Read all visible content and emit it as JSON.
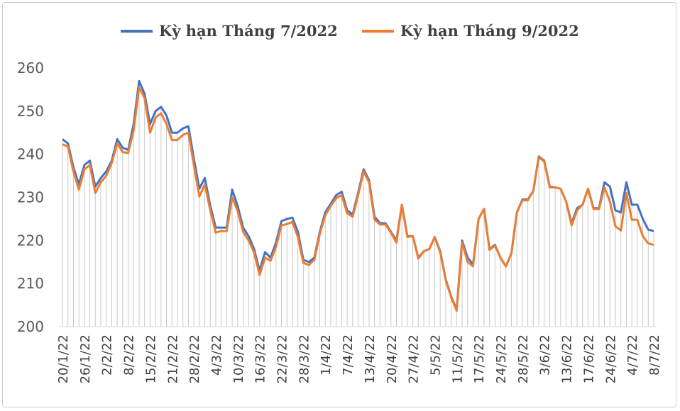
{
  "chart_data": {
    "type": "line",
    "title": "",
    "xlabel": "",
    "ylabel": "",
    "ylim": [
      200,
      260
    ],
    "yticks": [
      200,
      210,
      220,
      230,
      240,
      250,
      260
    ],
    "legend_position": "top-center",
    "grid": false,
    "drop_lines": true,
    "colors": {
      "series1": "#4472C4",
      "series2": "#ED7D31",
      "droplines": "#c8c8c8"
    },
    "x_tick_labels": [
      "20/1/22",
      "26/1/22",
      "2/2/22",
      "8/2/22",
      "15/2/22",
      "21/2/22",
      "28/2/22",
      "4/3/22",
      "10/3/22",
      "16/3/22",
      "22/3/22",
      "28/3/22",
      "1/4/22",
      "7/4/22",
      "13/4/22",
      "20/4/22",
      "27/4/22",
      "5/5/22",
      "11/5/22",
      "17/5/22",
      "24/5/22",
      "28/5/22",
      "3/6/22",
      "13/6/22",
      "17/6/22",
      "24/6/22",
      "4/7/22",
      "8/7/22"
    ],
    "x_tick_index": [
      0,
      4,
      8,
      12,
      16,
      20,
      24,
      28,
      32,
      36,
      40,
      44,
      48,
      52,
      56,
      60,
      64,
      68,
      72,
      76,
      80,
      84,
      88,
      92,
      96,
      100,
      104,
      108
    ],
    "point_count": 109,
    "series": [
      {
        "name": "Kỳ hạn Tháng 7/2022",
        "values": [
          243.5,
          242.5,
          237,
          233,
          237.5,
          238.5,
          232.5,
          234.5,
          236,
          238.5,
          243.5,
          241.5,
          241,
          247,
          257,
          254,
          247,
          250,
          251,
          249,
          245,
          245,
          246,
          246.5,
          239,
          232,
          234.5,
          228,
          223,
          223,
          223,
          231.8,
          228,
          223,
          221,
          218,
          213,
          217.3,
          216,
          219.5,
          224.5,
          225,
          225.3,
          222,
          215.5,
          215,
          216,
          222,
          226.5,
          228.5,
          230.5,
          231.3,
          227,
          226,
          231,
          236.5,
          234,
          225.5,
          224,
          224,
          222,
          220,
          228.3,
          221,
          221,
          216,
          217.5,
          218,
          220.8,
          217.5,
          211,
          207,
          204,
          220,
          216,
          214.5,
          225,
          227.3,
          218,
          219,
          216,
          214,
          217,
          226.5,
          229.5,
          229.5,
          231.5,
          239.5,
          238.5,
          232.5,
          232.3,
          232,
          229,
          224,
          227.5,
          228.3,
          232,
          227.5,
          227.5,
          233.5,
          232.5,
          227,
          226.5,
          233.5,
          228.3,
          228.3,
          225,
          222.5,
          222.2
        ],
        "values_color": "#4472C4"
      },
      {
        "name": "Kỳ hạn Tháng 9/2022",
        "values": [
          242.3,
          241.8,
          236,
          231.8,
          236.5,
          237.5,
          231,
          233.5,
          235,
          238,
          242.5,
          240.5,
          240.3,
          245.5,
          255.5,
          253,
          245,
          248.5,
          249.5,
          247,
          243.3,
          243.3,
          244.5,
          245,
          237.5,
          230.2,
          233,
          227,
          221.8,
          222.2,
          222.2,
          230,
          226.8,
          222,
          220,
          217.2,
          212,
          216,
          215.3,
          218.5,
          223.5,
          223.8,
          224.3,
          220.8,
          214.8,
          214.3,
          215.5,
          221.5,
          225.8,
          228,
          229.8,
          230.5,
          226.3,
          225.5,
          230.5,
          236,
          233.5,
          224.8,
          223.7,
          223.7,
          221.8,
          219.5,
          228.3,
          220.8,
          221,
          215.8,
          217.5,
          218,
          220.8,
          217.2,
          210.8,
          206.8,
          203.7,
          219.5,
          215,
          214,
          225,
          227.3,
          217.8,
          218.8,
          216,
          214,
          217,
          226.5,
          229.3,
          229.3,
          231.5,
          239.3,
          238.3,
          232.3,
          232.3,
          232,
          229,
          223.5,
          227,
          228.3,
          232,
          227.3,
          227.3,
          232.3,
          229,
          223.3,
          222.3,
          231,
          224.8,
          224.8,
          221,
          219.3,
          219
        ]
      }
    ]
  }
}
